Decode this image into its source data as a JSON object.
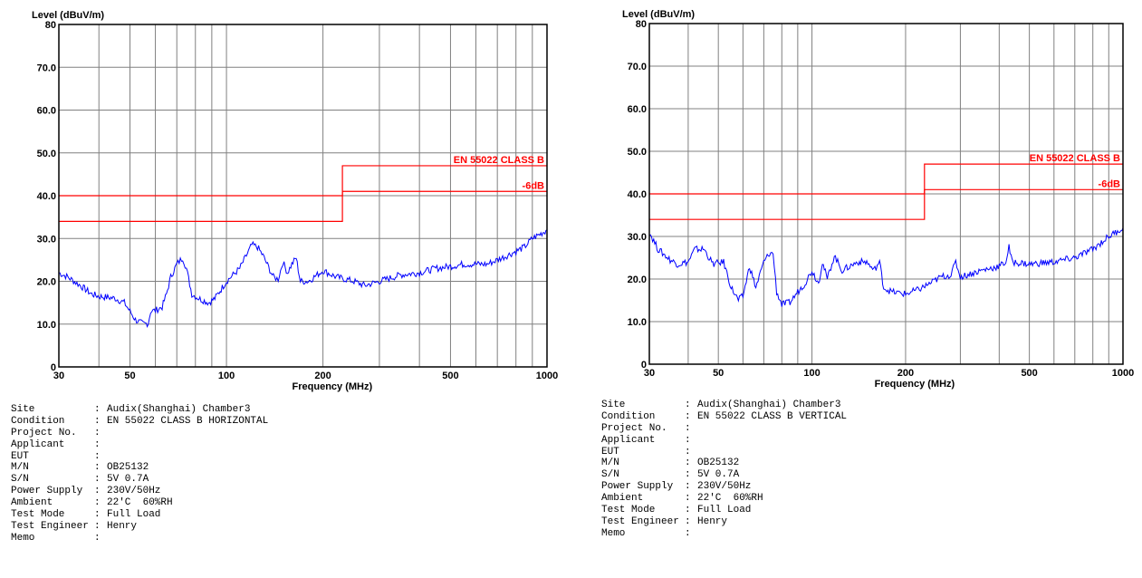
{
  "chart_data": [
    {
      "type": "line",
      "ylabel": "Level (dBuV/m)",
      "xlabel": "Frequency (MHz)",
      "xscale": "log",
      "xlim": [
        30,
        1000
      ],
      "ylim": [
        0,
        80
      ],
      "x_ticks": [
        30,
        50,
        100,
        200,
        500,
        1000
      ],
      "y_ticks": [
        0,
        10.0,
        20.0,
        30.0,
        40.0,
        50.0,
        60.0,
        70.0,
        80
      ],
      "y_tick_labels": [
        "0",
        "10.0",
        "20.0",
        "30.0",
        "40.0",
        "50.0",
        "60.0",
        "70.0",
        "80"
      ],
      "grid": true,
      "limits": [
        {
          "name": "EN 55022 CLASS B",
          "color": "#ff0000",
          "points": [
            [
              30,
              40
            ],
            [
              230,
              40
            ],
            [
              230,
              47
            ],
            [
              1000,
              47
            ]
          ]
        },
        {
          "name": "-6dB",
          "color": "#ff0000",
          "points": [
            [
              30,
              34
            ],
            [
              230,
              34
            ],
            [
              230,
              41
            ],
            [
              1000,
              41
            ]
          ]
        }
      ],
      "series": [
        {
          "color": "#0000ff",
          "points": [
            [
              30,
              22
            ],
            [
              32,
              21
            ],
            [
              35,
              19
            ],
            [
              38,
              17
            ],
            [
              40,
              16.5
            ],
            [
              45,
              16
            ],
            [
              48,
              15
            ],
            [
              50,
              13
            ],
            [
              52,
              11
            ],
            [
              55,
              10
            ],
            [
              57,
              10.2
            ],
            [
              58,
              13
            ],
            [
              60,
              13.2
            ],
            [
              63,
              14
            ],
            [
              65,
              17
            ],
            [
              67,
              21
            ],
            [
              70,
              24
            ],
            [
              73,
              25.5
            ],
            [
              75,
              23
            ],
            [
              78,
              17
            ],
            [
              82,
              16
            ],
            [
              88,
              15
            ],
            [
              92,
              16
            ],
            [
              100,
              20
            ],
            [
              110,
              23
            ],
            [
              120,
              28.5
            ],
            [
              125,
              28
            ],
            [
              130,
              26
            ],
            [
              140,
              21
            ],
            [
              145,
              20.5
            ],
            [
              150,
              24.5
            ],
            [
              155,
              22
            ],
            [
              160,
              24
            ],
            [
              165,
              25.5
            ],
            [
              170,
              20
            ],
            [
              180,
              20
            ],
            [
              200,
              22.5
            ],
            [
              220,
              21
            ],
            [
              250,
              20
            ],
            [
              270,
              19
            ],
            [
              300,
              20
            ],
            [
              350,
              21.5
            ],
            [
              400,
              22
            ],
            [
              450,
              23
            ],
            [
              500,
              23.5
            ],
            [
              550,
              24
            ],
            [
              600,
              24
            ],
            [
              650,
              24
            ],
            [
              700,
              25
            ],
            [
              750,
              26
            ],
            [
              800,
              27
            ],
            [
              850,
              28
            ],
            [
              900,
              30
            ],
            [
              950,
              31
            ],
            [
              1000,
              32
            ]
          ]
        }
      ]
    },
    {
      "type": "line",
      "ylabel": "Level (dBuV/m)",
      "xlabel": "Frequency (MHz)",
      "xscale": "log",
      "xlim": [
        30,
        1000
      ],
      "ylim": [
        0,
        80
      ],
      "x_ticks": [
        30,
        50,
        100,
        200,
        500,
        1000
      ],
      "y_ticks": [
        0,
        10.0,
        20.0,
        30.0,
        40.0,
        50.0,
        60.0,
        70.0,
        80
      ],
      "y_tick_labels": [
        "0",
        "10.0",
        "20.0",
        "30.0",
        "40.0",
        "50.0",
        "60.0",
        "70.0",
        "80"
      ],
      "grid": true,
      "limits": [
        {
          "name": "EN 55022 CLASS B",
          "color": "#ff0000",
          "points": [
            [
              30,
              40
            ],
            [
              230,
              40
            ],
            [
              230,
              47
            ],
            [
              1000,
              47
            ]
          ]
        },
        {
          "name": "-6dB",
          "color": "#ff0000",
          "points": [
            [
              30,
              34
            ],
            [
              230,
              34
            ],
            [
              230,
              41
            ],
            [
              1000,
              41
            ]
          ]
        }
      ],
      "series": [
        {
          "color": "#0000ff",
          "points": [
            [
              30,
              31
            ],
            [
              32,
              27
            ],
            [
              35,
              24.5
            ],
            [
              37,
              23.5
            ],
            [
              40,
              24
            ],
            [
              42,
              27
            ],
            [
              45,
              27
            ],
            [
              48,
              23.5
            ],
            [
              52,
              24
            ],
            [
              55,
              18
            ],
            [
              58,
              15
            ],
            [
              60,
              16
            ],
            [
              63,
              23
            ],
            [
              66,
              18
            ],
            [
              70,
              24
            ],
            [
              73,
              26
            ],
            [
              75,
              26
            ],
            [
              77,
              17
            ],
            [
              80,
              14
            ],
            [
              85,
              14.5
            ],
            [
              90,
              17
            ],
            [
              95,
              19
            ],
            [
              100,
              22
            ],
            [
              105,
              19
            ],
            [
              108,
              24
            ],
            [
              112,
              20
            ],
            [
              118,
              25.5
            ],
            [
              125,
              22
            ],
            [
              140,
              24
            ],
            [
              150,
              24
            ],
            [
              158,
              22
            ],
            [
              165,
              24
            ],
            [
              170,
              18
            ],
            [
              180,
              17
            ],
            [
              200,
              16.5
            ],
            [
              220,
              17.5
            ],
            [
              240,
              19
            ],
            [
              260,
              20.5
            ],
            [
              280,
              21
            ],
            [
              290,
              24
            ],
            [
              300,
              20.5
            ],
            [
              350,
              22
            ],
            [
              400,
              23
            ],
            [
              420,
              24
            ],
            [
              430,
              27.5
            ],
            [
              440,
              24
            ],
            [
              500,
              23.5
            ],
            [
              600,
              24
            ],
            [
              700,
              25
            ],
            [
              800,
              27
            ],
            [
              900,
              30
            ],
            [
              1000,
              32
            ]
          ]
        }
      ]
    }
  ],
  "info_panels": [
    {
      "rows": [
        {
          "label": "Site",
          "value": "Audix(Shanghai) Chamber3"
        },
        {
          "label": "Condition",
          "value": "EN 55022 CLASS B HORIZONTAL"
        },
        {
          "label": "Project No.",
          "value": ""
        },
        {
          "label": "Applicant",
          "value": ""
        },
        {
          "label": "EUT",
          "value": ""
        },
        {
          "label": "M/N",
          "value": "OB25132"
        },
        {
          "label": "S/N",
          "value": "5V 0.7A"
        },
        {
          "label": "Power Supply",
          "value": "230V/50Hz"
        },
        {
          "label": "Ambient",
          "value": "22'C  60%RH"
        },
        {
          "label": "Test Mode",
          "value": "Full Load"
        },
        {
          "label": "Test Engineer",
          "value": "Henry"
        },
        {
          "label": "Memo",
          "value": ""
        }
      ]
    },
    {
      "rows": [
        {
          "label": "Site",
          "value": "Audix(Shanghai) Chamber3"
        },
        {
          "label": "Condition",
          "value": "EN 55022 CLASS B VERTICAL"
        },
        {
          "label": "Project No.",
          "value": ""
        },
        {
          "label": "Applicant",
          "value": ""
        },
        {
          "label": "EUT",
          "value": ""
        },
        {
          "label": "M/N",
          "value": "OB25132"
        },
        {
          "label": "S/N",
          "value": "5V 0.7A"
        },
        {
          "label": "Power Supply",
          "value": "230V/50Hz"
        },
        {
          "label": "Ambient",
          "value": "22'C  60%RH"
        },
        {
          "label": "Test Mode",
          "value": "Full Load"
        },
        {
          "label": "Test Engineer",
          "value": "Henry"
        },
        {
          "label": "Memo",
          "value": ""
        }
      ]
    }
  ]
}
